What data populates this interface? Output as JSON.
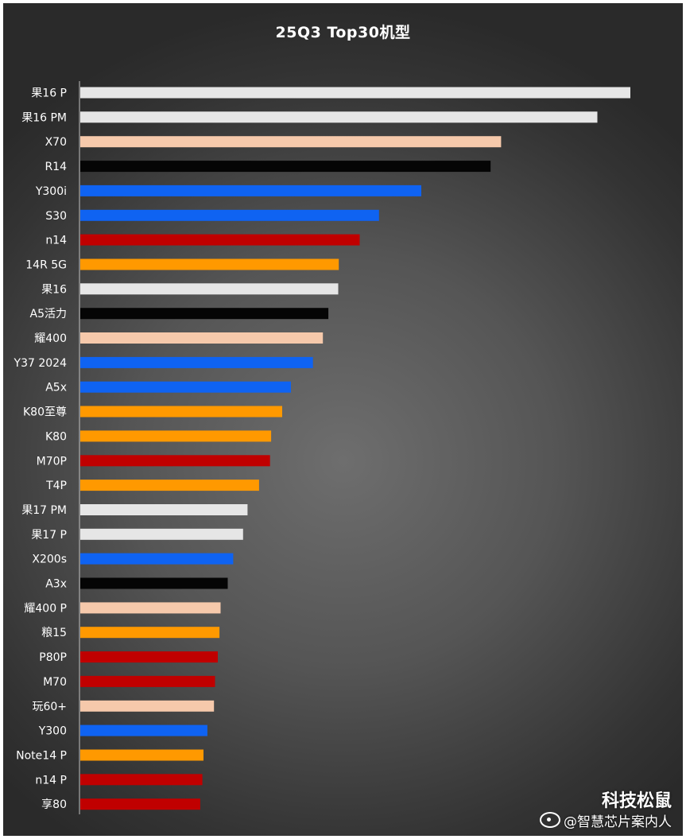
{
  "chart_data": {
    "type": "bar",
    "orientation": "horizontal",
    "title": "25Q3 Top30机型",
    "xlabel": "",
    "ylabel": "",
    "grid": false,
    "legend": "none",
    "xlim": [
      0,
      100
    ],
    "categories": [
      "果16 P",
      "果16 PM",
      "X70",
      "R14",
      "Y300i",
      "S30",
      "n14",
      "14R 5G",
      "果16",
      "A5活力",
      "耀400",
      "Y37 2024",
      "A5x",
      "K80至尊",
      "K80",
      "M70P",
      "T4P",
      "果17 PM",
      "果17 P",
      "X200s",
      "A3x",
      "耀400 P",
      "粮15",
      "P80P",
      "M70",
      "玩60+",
      "Y300",
      "Note14 P",
      "n14 P",
      "享80"
    ],
    "values": [
      100,
      94,
      76.5,
      74.6,
      62,
      54.3,
      50.8,
      47,
      46.9,
      45.1,
      44.1,
      42.3,
      38.3,
      36.7,
      34.7,
      34.5,
      32.5,
      30.4,
      29.6,
      27.8,
      26.8,
      25.5,
      25.3,
      25.0,
      24.5,
      24.3,
      23.1,
      22.4,
      22.2,
      21.8
    ],
    "colors": [
      "#e6e6e6",
      "#e6e6e6",
      "#f6c9ab",
      "#050505",
      "#0f63f2",
      "#0f63f2",
      "#c00000",
      "#ff9900",
      "#e6e6e6",
      "#050505",
      "#f6c9ab",
      "#0f63f2",
      "#0f63f2",
      "#ff9900",
      "#ff9900",
      "#c00000",
      "#ff9900",
      "#e6e6e6",
      "#e6e6e6",
      "#0f63f2",
      "#050505",
      "#f6c9ab",
      "#ff9900",
      "#c00000",
      "#c00000",
      "#f6c9ab",
      "#0f63f2",
      "#ff9900",
      "#c00000",
      "#c00000"
    ]
  },
  "watermark": {
    "brand": "科技松鼠",
    "handle": "@智慧芯片案内人",
    "icon": "weibo-icon"
  }
}
